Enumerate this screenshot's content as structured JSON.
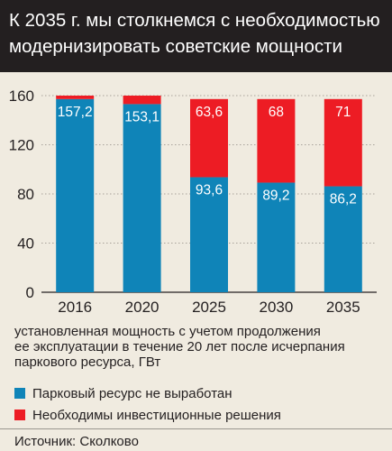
{
  "header": {
    "title_line1": "К 2035 г. мы столкнемся с необходимостью",
    "title_line2": "модернизировать советские мощности"
  },
  "chart_data": {
    "type": "bar",
    "stacked": true,
    "categories": [
      "2016",
      "2020",
      "2025",
      "2030",
      "2035"
    ],
    "series": [
      {
        "name": "Парковый ресурс не выработан",
        "color": "#0f84b8",
        "values": [
          157.2,
          153.1,
          93.6,
          89.2,
          86.2
        ],
        "labels": [
          "157,2",
          "153,1",
          "93,6",
          "89,2",
          "86,2"
        ]
      },
      {
        "name": "Необходимы инвестиционные решения",
        "color": "#ed1c24",
        "values": [
          2.8,
          6.9,
          63.6,
          68,
          71
        ],
        "labels": [
          "",
          "",
          "63,6",
          "68",
          "71"
        ]
      }
    ],
    "ylim": [
      0,
      160
    ],
    "yticks": [
      0,
      40,
      80,
      120,
      160
    ],
    "grid": true
  },
  "caption": {
    "line1": "установленная мощность с учетом продолжения",
    "line2": "ее эксплуатации в течение 20 лет после исчерпания",
    "line3": "паркового ресурса, ГВт"
  },
  "legend": [
    {
      "label": "Парковый ресурс не выработан",
      "color": "#0f84b8"
    },
    {
      "label": "Необходимы инвестиционные решения",
      "color": "#ed1c24"
    }
  ],
  "footer": {
    "source": "Источник: Сколково"
  }
}
